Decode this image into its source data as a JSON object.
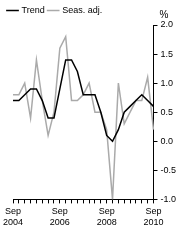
{
  "chart_data": {
    "type": "line",
    "ylabel": "%",
    "categories": [
      "Sep 2004",
      null,
      null,
      null,
      null,
      null,
      null,
      null,
      "Sep 2006",
      null,
      null,
      null,
      null,
      null,
      null,
      null,
      "Sep 2008",
      null,
      null,
      null,
      null,
      null,
      null,
      null,
      "Sep 2010"
    ],
    "series": [
      {
        "name": "Trend",
        "color": "#000000",
        "values": [
          0.7,
          0.7,
          0.8,
          0.9,
          0.9,
          0.7,
          0.4,
          0.4,
          0.9,
          1.4,
          1.4,
          1.2,
          0.8,
          0.8,
          0.8,
          0.5,
          0.1,
          0.0,
          0.2,
          0.5,
          0.6,
          0.7,
          0.8,
          0.7,
          0.6
        ]
      },
      {
        "name": "Seas. adj.",
        "color": "#aaaaaa",
        "values": [
          0.8,
          0.8,
          1.0,
          0.4,
          1.4,
          0.7,
          0.1,
          0.5,
          1.6,
          1.8,
          0.7,
          0.7,
          0.8,
          1.0,
          0.5,
          0.5,
          0.2,
          -1.0,
          1.0,
          0.3,
          0.5,
          0.7,
          0.7,
          1.1,
          0.2
        ]
      }
    ],
    "ylim": [
      -1.0,
      2.0
    ],
    "yticks": [
      {
        "value": -1,
        "label": "-1.0"
      },
      {
        "value": -0.5,
        "label": "-0.5"
      },
      {
        "value": 0,
        "label": "0.0"
      },
      {
        "value": 0.5,
        "label": "0.5"
      },
      {
        "value": 1,
        "label": "1.0"
      },
      {
        "value": 1.5,
        "label": "1.5"
      },
      {
        "value": 2,
        "label": "2.0"
      }
    ],
    "grid": false,
    "legend": "top-left"
  }
}
